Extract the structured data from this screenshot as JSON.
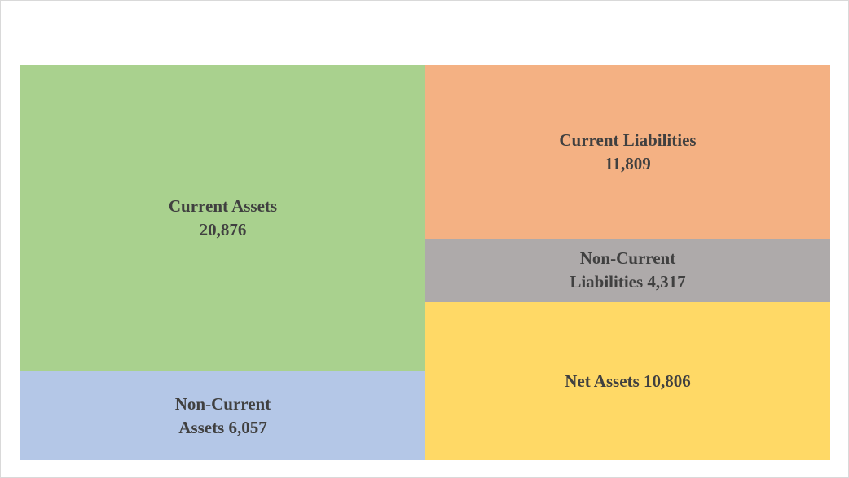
{
  "chart_data": {
    "type": "treemap",
    "title": "",
    "groups": [
      {
        "tiles": [
          {
            "name": "Current Assets",
            "label": "Current Assets\n20,876",
            "value": 20876,
            "color": "#a9d18e"
          },
          {
            "name": "Non-Current Assets",
            "label": "Non-Current\nAssets 6,057",
            "value": 6057,
            "color": "#b4c7e7"
          }
        ]
      },
      {
        "tiles": [
          {
            "name": "Current Liabilities",
            "label": "Current Liabilities\n11,809",
            "value": 11809,
            "color": "#f4b183"
          },
          {
            "name": "Non-Current Liabilities",
            "label": "Non-Current\nLiabilities 4,317",
            "value": 4317,
            "color": "#aeaaaa"
          },
          {
            "name": "Net Assets",
            "label": "Net Assets 10,806",
            "value": 10806,
            "color": "#ffd966"
          }
        ]
      }
    ]
  }
}
